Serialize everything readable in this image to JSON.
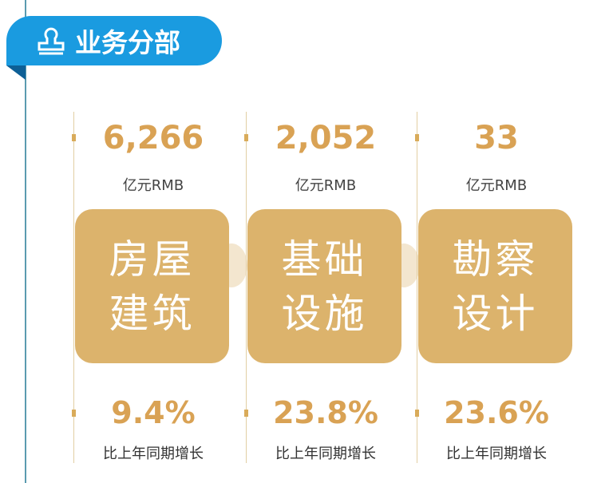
{
  "header": {
    "title": "业务分部",
    "icon": "stamp-icon"
  },
  "colors": {
    "banner": "#1a9be0",
    "gold": "#d9a254",
    "card": "#dcb36c"
  },
  "segments": [
    {
      "value": "6,266",
      "unit": "亿元RMB",
      "line1": "房屋",
      "line2": "建筑",
      "growth": "9.4%",
      "growth_label": "比上年同期增长"
    },
    {
      "value": "2,052",
      "unit": "亿元RMB",
      "line1": "基础",
      "line2": "设施",
      "growth": "23.8%",
      "growth_label": "比上年同期增长"
    },
    {
      "value": "33",
      "unit": "亿元RMB",
      "line1": "勘察",
      "line2": "设计",
      "growth": "23.6%",
      "growth_label": "比上年同期增长"
    }
  ]
}
